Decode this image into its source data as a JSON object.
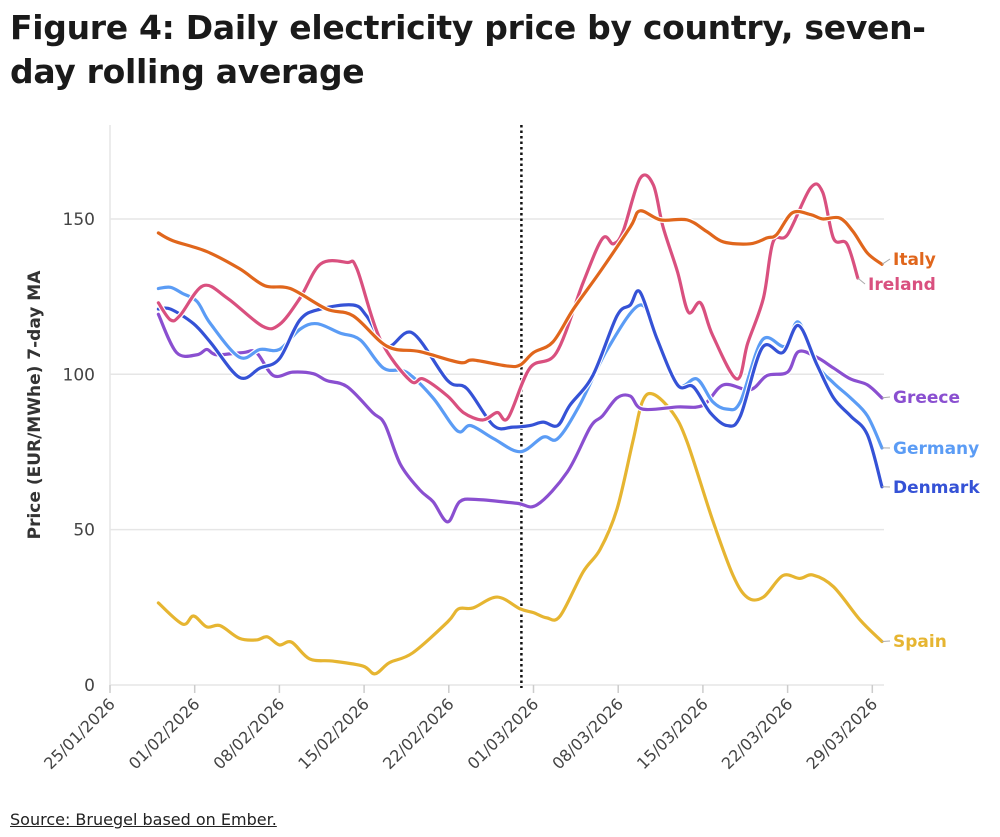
{
  "chart_data": {
    "type": "line",
    "title": "Figure 4: Daily electricity price by country, seven-day rolling average",
    "xlabel": "",
    "ylabel": "Price (EUR/MWhe) 7-day MA",
    "x_unit": "days since 25/01/2026",
    "xlim": [
      0,
      64
    ],
    "ylim": [
      0,
      180
    ],
    "yticks": [
      0,
      50,
      100,
      150
    ],
    "xticks": [
      {
        "day": 0,
        "label": "25/01/2026"
      },
      {
        "day": 7,
        "label": "01/02/2026"
      },
      {
        "day": 14,
        "label": "08/02/2026"
      },
      {
        "day": 21,
        "label": "15/02/2026"
      },
      {
        "day": 28,
        "label": "22/02/2026"
      },
      {
        "day": 35,
        "label": "01/03/2026"
      },
      {
        "day": 42,
        "label": "08/03/2026"
      },
      {
        "day": 49,
        "label": "15/03/2026"
      },
      {
        "day": 56,
        "label": "22/03/2026"
      },
      {
        "day": 63,
        "label": "29/03/2026"
      }
    ],
    "vertical_marker_day": 34,
    "grid": true,
    "legend": "direct labels at line ends (right)",
    "series": [
      {
        "name": "Italy",
        "color": "#e0661c",
        "points": [
          [
            4,
            145.5
          ],
          [
            5.2,
            143
          ],
          [
            8,
            139.5
          ],
          [
            10.7,
            134
          ],
          [
            12.8,
            128.5
          ],
          [
            14.9,
            127.6
          ],
          [
            17.9,
            121
          ],
          [
            20.1,
            118.8
          ],
          [
            22.9,
            109
          ],
          [
            25.6,
            107.3
          ],
          [
            28.9,
            103.8
          ],
          [
            30,
            104.6
          ],
          [
            32.8,
            102.7
          ],
          [
            33.9,
            103
          ],
          [
            35,
            107
          ],
          [
            36.6,
            110.4
          ],
          [
            38.3,
            121
          ],
          [
            40.5,
            133
          ],
          [
            43,
            147.4
          ],
          [
            43.8,
            152.6
          ],
          [
            45.5,
            149.7
          ],
          [
            47.7,
            149.7
          ],
          [
            49.3,
            146
          ],
          [
            50.7,
            142.6
          ],
          [
            52.9,
            142
          ],
          [
            54.3,
            143.9
          ],
          [
            55.1,
            145
          ],
          [
            56.4,
            152
          ],
          [
            57.9,
            151.4
          ],
          [
            58.9,
            150
          ],
          [
            60.3,
            150.3
          ],
          [
            61.4,
            146
          ],
          [
            62.6,
            139
          ],
          [
            63.8,
            135.4
          ]
        ]
      },
      {
        "name": "Ireland",
        "color": "#d9507f",
        "points": [
          [
            4,
            123
          ],
          [
            5,
            117.5
          ],
          [
            5.8,
            119
          ],
          [
            7.7,
            128.5
          ],
          [
            9.7,
            124.5
          ],
          [
            12.6,
            115.5
          ],
          [
            14,
            116
          ],
          [
            15.7,
            124.5
          ],
          [
            17.4,
            135.5
          ],
          [
            19.6,
            136
          ],
          [
            20.4,
            134
          ],
          [
            22.3,
            111.5
          ],
          [
            24.8,
            98
          ],
          [
            25.9,
            98.5
          ],
          [
            27.9,
            93
          ],
          [
            29.2,
            87.7
          ],
          [
            30.8,
            85.3
          ],
          [
            32,
            87.7
          ],
          [
            32.9,
            86
          ],
          [
            34.7,
            102
          ],
          [
            36.9,
            107
          ],
          [
            39.1,
            129.5
          ],
          [
            40.7,
            143.7
          ],
          [
            41.6,
            142
          ],
          [
            42.4,
            146
          ],
          [
            43.8,
            163
          ],
          [
            44.9,
            161
          ],
          [
            45.7,
            147.5
          ],
          [
            46.9,
            133
          ],
          [
            47.8,
            120
          ],
          [
            48.8,
            123
          ],
          [
            49.8,
            112.6
          ],
          [
            51.8,
            98.5
          ],
          [
            52.7,
            110
          ],
          [
            54,
            124.5
          ],
          [
            54.8,
            142.6
          ],
          [
            56,
            145
          ],
          [
            57.9,
            160
          ],
          [
            58.9,
            158.6
          ],
          [
            59.8,
            143.7
          ],
          [
            60.9,
            142
          ],
          [
            61.8,
            131
          ]
        ]
      },
      {
        "name": "Greece",
        "color": "#8a4fd0",
        "points": [
          [
            4,
            119.3
          ],
          [
            5.5,
            107
          ],
          [
            7.2,
            106.3
          ],
          [
            8,
            108
          ],
          [
            8.8,
            106.3
          ],
          [
            11,
            107
          ],
          [
            12.1,
            107
          ],
          [
            13.5,
            99.6
          ],
          [
            15.1,
            100.7
          ],
          [
            16.8,
            100.2
          ],
          [
            17.9,
            98
          ],
          [
            19.6,
            96
          ],
          [
            21.7,
            87.7
          ],
          [
            22.7,
            84
          ],
          [
            24,
            71
          ],
          [
            25.6,
            62.8
          ],
          [
            26.7,
            59
          ],
          [
            27.9,
            52.5
          ],
          [
            28.9,
            59
          ],
          [
            30.3,
            59.7
          ],
          [
            33.6,
            58.5
          ],
          [
            35.3,
            58
          ],
          [
            37.8,
            68.6
          ],
          [
            39.7,
            83
          ],
          [
            40.7,
            86.6
          ],
          [
            41.9,
            92.4
          ],
          [
            43,
            93
          ],
          [
            44,
            88.8
          ],
          [
            46.9,
            89.5
          ],
          [
            49,
            90
          ],
          [
            50.7,
            96.6
          ],
          [
            52.9,
            95
          ],
          [
            54.3,
            99.6
          ],
          [
            56,
            100.7
          ],
          [
            56.9,
            107.3
          ],
          [
            58.4,
            105.5
          ],
          [
            59.8,
            102
          ],
          [
            61.2,
            98.5
          ],
          [
            62.6,
            96.6
          ],
          [
            63.8,
            92.4
          ]
        ]
      },
      {
        "name": "Germany",
        "color": "#5b9cf5",
        "points": [
          [
            4,
            127.6
          ],
          [
            5,
            128
          ],
          [
            6,
            126
          ],
          [
            7.2,
            123.4
          ],
          [
            8.3,
            116.3
          ],
          [
            10.7,
            105.5
          ],
          [
            12.4,
            108
          ],
          [
            14,
            108
          ],
          [
            15.7,
            114.5
          ],
          [
            17.1,
            116.3
          ],
          [
            19,
            113.3
          ],
          [
            20.7,
            111
          ],
          [
            22.6,
            102
          ],
          [
            24.5,
            100.7
          ],
          [
            26.7,
            92.4
          ],
          [
            28.7,
            81.8
          ],
          [
            29.8,
            83.5
          ],
          [
            31.7,
            79.3
          ],
          [
            33.9,
            75.1
          ],
          [
            35.8,
            79.8
          ],
          [
            37,
            79.3
          ],
          [
            38.8,
            90
          ],
          [
            41.1,
            108
          ],
          [
            43.8,
            122.3
          ],
          [
            45.2,
            111.5
          ],
          [
            46.9,
            96.6
          ],
          [
            48.5,
            98.5
          ],
          [
            49.8,
            91.2
          ],
          [
            51,
            88.8
          ],
          [
            52.1,
            91.2
          ],
          [
            53.9,
            111
          ],
          [
            55.8,
            109
          ],
          [
            56.9,
            116.8
          ],
          [
            58.4,
            103.3
          ],
          [
            59.8,
            97.2
          ],
          [
            61.2,
            92.4
          ],
          [
            62.6,
            86.6
          ],
          [
            63.8,
            76.3
          ]
        ]
      },
      {
        "name": "Denmark",
        "color": "#3552d6",
        "points": [
          [
            4,
            121
          ],
          [
            5,
            121
          ],
          [
            6.9,
            116.3
          ],
          [
            8.3,
            110.3
          ],
          [
            10.7,
            99
          ],
          [
            12.4,
            102
          ],
          [
            14,
            105
          ],
          [
            15.7,
            117.5
          ],
          [
            17.4,
            121
          ],
          [
            20.1,
            122.3
          ],
          [
            21.2,
            118.8
          ],
          [
            22.9,
            109
          ],
          [
            25,
            113.3
          ],
          [
            27.9,
            98
          ],
          [
            29.5,
            95.4
          ],
          [
            31.7,
            83.5
          ],
          [
            33.3,
            83
          ],
          [
            34.7,
            83.5
          ],
          [
            35.8,
            84.6
          ],
          [
            37,
            83.5
          ],
          [
            38,
            90
          ],
          [
            39.9,
            99.6
          ],
          [
            41.9,
            118.8
          ],
          [
            43,
            122.3
          ],
          [
            43.8,
            126.5
          ],
          [
            45.2,
            111.5
          ],
          [
            46.9,
            96.6
          ],
          [
            48.2,
            96
          ],
          [
            49.6,
            87.7
          ],
          [
            51,
            83.5
          ],
          [
            52.1,
            86.6
          ],
          [
            53.9,
            108.5
          ],
          [
            55.6,
            107
          ],
          [
            56.9,
            115.7
          ],
          [
            58.4,
            103.3
          ],
          [
            59.8,
            92.4
          ],
          [
            61.2,
            86.6
          ],
          [
            62.6,
            80.5
          ],
          [
            63.8,
            63.8
          ]
        ]
      },
      {
        "name": "Spain",
        "color": "#e6b531",
        "points": [
          [
            4,
            26.4
          ],
          [
            6,
            19.6
          ],
          [
            6.9,
            22.2
          ],
          [
            8,
            18.7
          ],
          [
            9.1,
            19.1
          ],
          [
            10.7,
            15
          ],
          [
            12.1,
            14.5
          ],
          [
            13,
            15.5
          ],
          [
            14,
            12.9
          ],
          [
            15,
            13.8
          ],
          [
            16.5,
            8.4
          ],
          [
            18.4,
            7.7
          ],
          [
            20.9,
            6.1
          ],
          [
            21.9,
            3.6
          ],
          [
            23.1,
            7.2
          ],
          [
            25,
            10.3
          ],
          [
            27.9,
            20.3
          ],
          [
            28.8,
            24.5
          ],
          [
            30,
            24.8
          ],
          [
            32,
            28.3
          ],
          [
            33.9,
            24.5
          ],
          [
            35,
            23.3
          ],
          [
            36.1,
            21.6
          ],
          [
            37.2,
            22.2
          ],
          [
            39.1,
            36.4
          ],
          [
            40.5,
            43.6
          ],
          [
            41.9,
            56.6
          ],
          [
            43.2,
            78.2
          ],
          [
            44,
            91.2
          ],
          [
            44.9,
            93.6
          ],
          [
            46.5,
            87.7
          ],
          [
            47.7,
            78.2
          ],
          [
            49.8,
            53.1
          ],
          [
            51.5,
            35.2
          ],
          [
            52.7,
            28.1
          ],
          [
            54,
            28.3
          ],
          [
            55.6,
            35.2
          ],
          [
            57,
            34.3
          ],
          [
            58.1,
            35.4
          ],
          [
            59.8,
            31.6
          ],
          [
            62,
            20.9
          ],
          [
            63.8,
            14
          ]
        ]
      }
    ]
  },
  "source": "Source: Bruegel based on Ember."
}
